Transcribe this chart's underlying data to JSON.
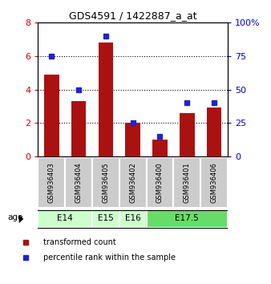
{
  "title": "GDS4591 / 1422887_a_at",
  "samples": [
    "GSM936403",
    "GSM936404",
    "GSM936405",
    "GSM936402",
    "GSM936400",
    "GSM936401",
    "GSM936406"
  ],
  "transformed_counts": [
    4.9,
    3.3,
    6.8,
    2.0,
    1.0,
    2.6,
    2.9
  ],
  "percentile_ranks": [
    75,
    50,
    90,
    25,
    15,
    40,
    40
  ],
  "age_groups": [
    {
      "label": "E14",
      "indices": [
        0,
        1
      ],
      "color": "#ccffcc"
    },
    {
      "label": "E15",
      "indices": [
        2
      ],
      "color": "#ccffcc"
    },
    {
      "label": "E16",
      "indices": [
        3
      ],
      "color": "#ccffcc"
    },
    {
      "label": "E17.5",
      "indices": [
        4,
        5,
        6
      ],
      "color": "#66dd66"
    }
  ],
  "bar_color": "#aa1111",
  "dot_color": "#2222cc",
  "left_ylim": [
    0,
    8
  ],
  "right_ylim": [
    0,
    100
  ],
  "left_yticks": [
    0,
    2,
    4,
    6,
    8
  ],
  "right_yticks": [
    0,
    25,
    50,
    75,
    100
  ],
  "left_tick_color": "#cc0000",
  "right_tick_color": "#0000cc",
  "sample_bg_color": "#cccccc",
  "age_label": "age",
  "legend_items": [
    "transformed count",
    "percentile rank within the sample"
  ]
}
